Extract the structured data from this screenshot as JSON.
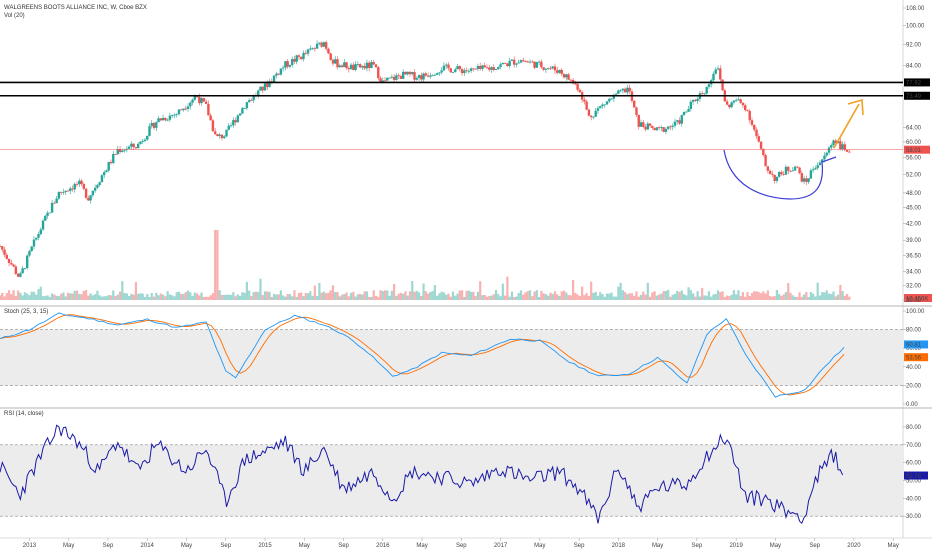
{
  "chart_data": [
    {
      "type": "candlestick",
      "title": "WALGREENS BOOTS ALLIANCE INC, W, Cboe BZX",
      "volume_label": "Vol (20)",
      "y_ticks": [
        "108.00",
        "100.00",
        "92.00",
        "84.00",
        "77.92",
        "73.49",
        "64.00",
        "60.00",
        "56.00",
        "52.00",
        "48.00",
        "45.00",
        "42.00",
        "39.00",
        "36.50",
        "34.00",
        "32.00",
        "30.00"
      ],
      "ylim": [
        30,
        108
      ],
      "horizontal_levels": [
        77.92,
        73.49
      ],
      "horizontal_level_labels": [
        "77.92",
        "73.49"
      ],
      "last_price": 58.01,
      "last_price_label": "58.01",
      "volume_last_label": "10.456K",
      "colors": {
        "up": "#26a69a",
        "down": "#ef5350",
        "level": "#000000",
        "last": "#ef5350",
        "cup": "#3b3bd6",
        "arrow": "#f0a020"
      },
      "close_path": [
        [
          "2012-10",
          38.0
        ],
        [
          "2012-12",
          33.0
        ],
        [
          "2013-02",
          40.5
        ],
        [
          "2013-04",
          48.0
        ],
        [
          "2013-06",
          50.0
        ],
        [
          "2013-07",
          47.0
        ],
        [
          "2013-09",
          54.0
        ],
        [
          "2013-10",
          58.0
        ],
        [
          "2013-12",
          59.0
        ],
        [
          "2014-02",
          66.0
        ],
        [
          "2014-04",
          68.0
        ],
        [
          "2014-06",
          73.5
        ],
        [
          "2014-07",
          70.0
        ],
        [
          "2014-08",
          61.0
        ],
        [
          "2014-09",
          62.0
        ],
        [
          "2014-11",
          71.0
        ],
        [
          "2015-01",
          76.5
        ],
        [
          "2015-03",
          84.0
        ],
        [
          "2015-05",
          88.0
        ],
        [
          "2015-07",
          93.0
        ],
        [
          "2015-08",
          85.0
        ],
        [
          "2015-10",
          83.0
        ],
        [
          "2015-12",
          84.0
        ],
        [
          "2016-01",
          78.0
        ],
        [
          "2016-03",
          80.5
        ],
        [
          "2016-05",
          80.0
        ],
        [
          "2016-07",
          83.0
        ],
        [
          "2016-10",
          82.0
        ],
        [
          "2016-12",
          83.0
        ],
        [
          "2017-03",
          86.0
        ],
        [
          "2017-05",
          84.0
        ],
        [
          "2017-07",
          82.0
        ],
        [
          "2017-09",
          76.0
        ],
        [
          "2017-10",
          67.0
        ],
        [
          "2017-12",
          72.0
        ],
        [
          "2018-02",
          76.0
        ],
        [
          "2018-03",
          65.0
        ],
        [
          "2018-05",
          63.0
        ],
        [
          "2018-07",
          65.0
        ],
        [
          "2018-09",
          73.0
        ],
        [
          "2018-10",
          76.0
        ],
        [
          "2018-11",
          84.0
        ],
        [
          "2018-12",
          70.0
        ],
        [
          "2019-01",
          72.0
        ],
        [
          "2019-02",
          70.0
        ],
        [
          "2019-03",
          62.0
        ],
        [
          "2019-04",
          54.0
        ],
        [
          "2019-05",
          51.0
        ],
        [
          "2019-06",
          53.0
        ],
        [
          "2019-07",
          54.0
        ],
        [
          "2019-08",
          50.0
        ],
        [
          "2019-09",
          54.0
        ],
        [
          "2019-10",
          56.0
        ],
        [
          "2019-11",
          61.0
        ],
        [
          "2019-12",
          58.0
        ]
      ]
    },
    {
      "type": "line",
      "title": "Stoch (25, 3, 15)",
      "y_ticks": [
        "100.00",
        "80.00",
        "60.00",
        "40.00",
        "20.00",
        "0.00"
      ],
      "ylim": [
        0,
        100
      ],
      "bands": [
        20,
        80
      ],
      "series": [
        {
          "name": "%K",
          "color": "#2196f3",
          "last_label": "60.81"
        },
        {
          "name": "%D",
          "color": "#ff6d00",
          "last_label": "53.56"
        }
      ],
      "k_path": [
        [
          "2012-10",
          70
        ],
        [
          "2013-01",
          80
        ],
        [
          "2013-04",
          97
        ],
        [
          "2013-07",
          92
        ],
        [
          "2013-10",
          85
        ],
        [
          "2014-01",
          91
        ],
        [
          "2014-04",
          82
        ],
        [
          "2014-07",
          88
        ],
        [
          "2014-09",
          35
        ],
        [
          "2014-10",
          28
        ],
        [
          "2015-01",
          80
        ],
        [
          "2015-04",
          95
        ],
        [
          "2015-07",
          85
        ],
        [
          "2015-09",
          75
        ],
        [
          "2015-11",
          60
        ],
        [
          "2016-02",
          30
        ],
        [
          "2016-04",
          37
        ],
        [
          "2016-07",
          55
        ],
        [
          "2016-10",
          52
        ],
        [
          "2017-02",
          70
        ],
        [
          "2017-05",
          68
        ],
        [
          "2017-08",
          45
        ],
        [
          "2017-11",
          30
        ],
        [
          "2018-02",
          32
        ],
        [
          "2018-05",
          50
        ],
        [
          "2018-08",
          22
        ],
        [
          "2018-10",
          75
        ],
        [
          "2018-12",
          92
        ],
        [
          "2019-02",
          52
        ],
        [
          "2019-05",
          8
        ],
        [
          "2019-08",
          15
        ],
        [
          "2019-10",
          40
        ],
        [
          "2019-12",
          61
        ]
      ]
    },
    {
      "type": "line",
      "title": "RSI (14, close)",
      "y_ticks": [
        "80.00",
        "70.00",
        "60.00",
        "50.00",
        "40.00",
        "30.00"
      ],
      "ylim": [
        20,
        85
      ],
      "bands": [
        30,
        70
      ],
      "series": [
        {
          "name": "RSI",
          "color": "#1a1aa6",
          "last_label": "52.76"
        }
      ],
      "rsi_path": [
        [
          "2012-10",
          58
        ],
        [
          "2012-12",
          42
        ],
        [
          "2013-02",
          62
        ],
        [
          "2013-04",
          80
        ],
        [
          "2013-06",
          71
        ],
        [
          "2013-08",
          55
        ],
        [
          "2013-10",
          72
        ],
        [
          "2013-12",
          55
        ],
        [
          "2014-02",
          70
        ],
        [
          "2014-05",
          55
        ],
        [
          "2014-07",
          68
        ],
        [
          "2014-09",
          38
        ],
        [
          "2014-11",
          62
        ],
        [
          "2015-01",
          66
        ],
        [
          "2015-03",
          72
        ],
        [
          "2015-05",
          55
        ],
        [
          "2015-07",
          68
        ],
        [
          "2015-09",
          45
        ],
        [
          "2015-12",
          55
        ],
        [
          "2016-02",
          40
        ],
        [
          "2016-04",
          55
        ],
        [
          "2016-07",
          52
        ],
        [
          "2016-10",
          48
        ],
        [
          "2017-01",
          57
        ],
        [
          "2017-04",
          50
        ],
        [
          "2017-07",
          55
        ],
        [
          "2017-09",
          45
        ],
        [
          "2017-11",
          28
        ],
        [
          "2018-01",
          58
        ],
        [
          "2018-03",
          35
        ],
        [
          "2018-05",
          46
        ],
        [
          "2018-08",
          48
        ],
        [
          "2018-10",
          64
        ],
        [
          "2018-12",
          75
        ],
        [
          "2019-02",
          40
        ],
        [
          "2019-04",
          40
        ],
        [
          "2019-06",
          33
        ],
        [
          "2019-08",
          30
        ],
        [
          "2019-09",
          50
        ],
        [
          "2019-11",
          65
        ],
        [
          "2019-12",
          53
        ]
      ]
    }
  ],
  "x_axis": {
    "labels": [
      "2013",
      "May",
      "Sep",
      "2014",
      "May",
      "Sep",
      "2015",
      "May",
      "Sep",
      "2016",
      "May",
      "Sep",
      "2017",
      "May",
      "Sep",
      "2018",
      "May",
      "Sep",
      "2019",
      "May",
      "Sep",
      "2020",
      "May"
    ]
  }
}
